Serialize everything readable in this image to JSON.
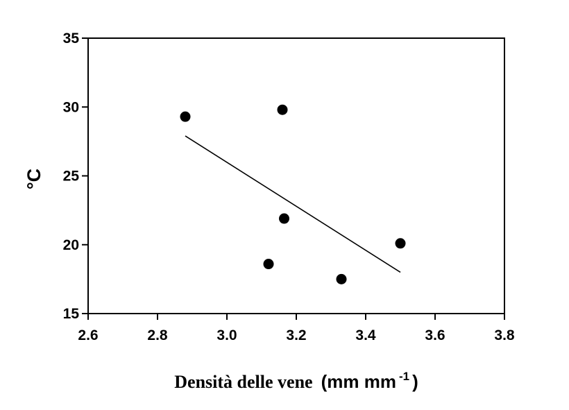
{
  "chart_data": {
    "type": "scatter",
    "ylabel": "°C",
    "xlabel": {
      "main": "Densità delle vene",
      "unit_open": "(mm mm",
      "unit_sup": "-1",
      "unit_close": ")"
    },
    "xlim": [
      2.6,
      3.8
    ],
    "ylim": [
      15,
      35
    ],
    "xticks": [
      "2.6",
      "2.8",
      "3.0",
      "3.2",
      "3.4",
      "3.6",
      "3.8"
    ],
    "yticks": [
      "15",
      "20",
      "25",
      "30",
      "35"
    ],
    "points": [
      {
        "x": 2.88,
        "y": 29.3
      },
      {
        "x": 3.16,
        "y": 29.8
      },
      {
        "x": 3.165,
        "y": 21.9
      },
      {
        "x": 3.12,
        "y": 18.6
      },
      {
        "x": 3.33,
        "y": 17.5
      },
      {
        "x": 3.5,
        "y": 20.1
      }
    ],
    "trendline": {
      "x": [
        2.88,
        3.5
      ],
      "y": [
        27.9,
        18.0
      ]
    },
    "grid": false,
    "legend": "none",
    "colors": {
      "marker": "#000000",
      "line": "#000000",
      "axes": "#000000"
    }
  }
}
